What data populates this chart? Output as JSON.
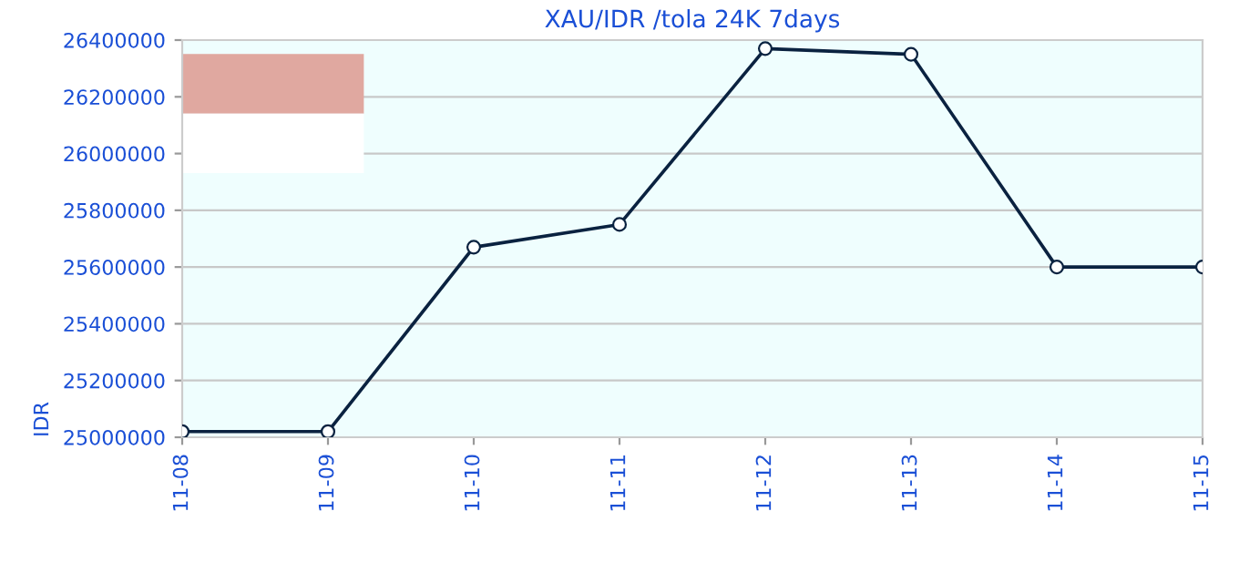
{
  "chart_data": {
    "type": "line",
    "title": "XAU/IDR /tola 24K 7days",
    "ylabel": "IDR",
    "categories": [
      "11-08",
      "11-09",
      "11-10",
      "11-11",
      "11-12",
      "11-13",
      "11-14",
      "11-15"
    ],
    "series": [
      {
        "color": "#0a2240",
        "values": [
          25020000,
          25020000,
          25670000,
          25750000,
          26370000,
          26350000,
          25600000,
          25600000
        ]
      }
    ],
    "ylim": [
      25000000,
      26400000
    ],
    "yticks": [
      25000000,
      25200000,
      25400000,
      25600000,
      25800000,
      26000000,
      26200000,
      26400000
    ],
    "grid": "y",
    "marker": "circle",
    "line_style": "solid"
  }
}
